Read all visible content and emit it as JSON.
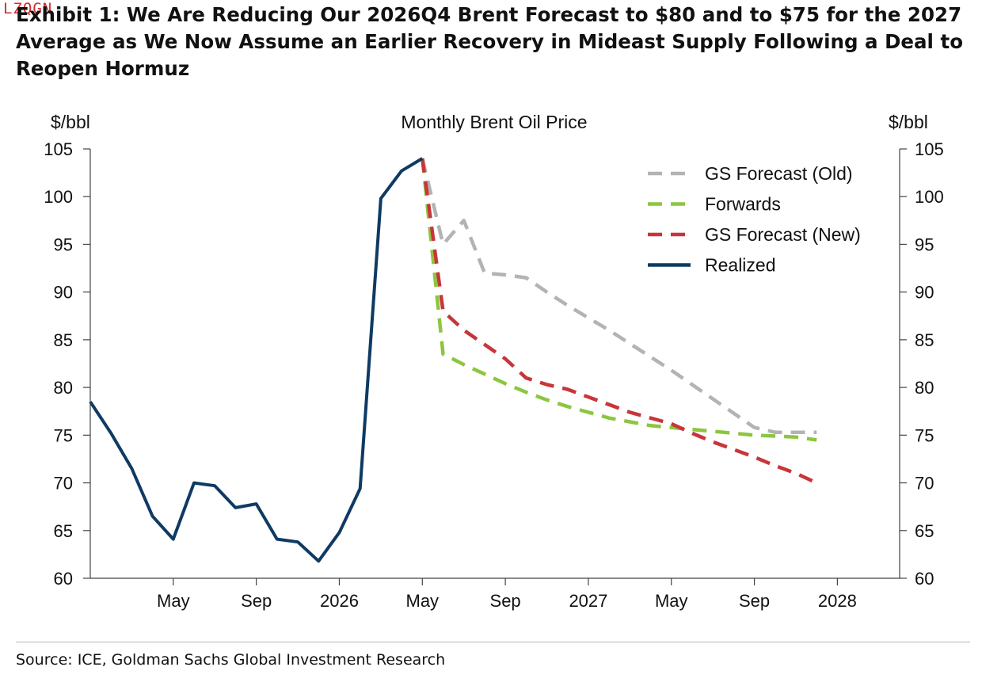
{
  "watermark": "LZQGN",
  "title": "Exhibit 1: We Are Reducing Our 2026Q4 Brent Forecast to $80 and to $75 for the 2027 Average as We Now Assume an Earlier Recovery in Mideast Supply Following a Deal to Reopen Hormuz",
  "source": "Source: ICE, Goldman Sachs Global Investment Research",
  "chart_data": {
    "type": "line",
    "title": "Monthly Brent Oil Price",
    "ylabel_left": "$/bbl",
    "ylabel_right": "$/bbl",
    "ylim": [
      60,
      105
    ],
    "yticks": [
      60,
      65,
      70,
      75,
      80,
      85,
      90,
      95,
      100,
      105
    ],
    "x_range": [
      "2025-01",
      "2028-04"
    ],
    "xticks": [
      {
        "x": "2025-05",
        "label": "May"
      },
      {
        "x": "2025-09",
        "label": "Sep"
      },
      {
        "x": "2026-01",
        "label": "2026"
      },
      {
        "x": "2026-05",
        "label": "May"
      },
      {
        "x": "2026-09",
        "label": "Sep"
      },
      {
        "x": "2027-01",
        "label": "2027"
      },
      {
        "x": "2027-05",
        "label": "May"
      },
      {
        "x": "2027-09",
        "label": "Sep"
      },
      {
        "x": "2028-01",
        "label": "2028"
      }
    ],
    "legend_position": "top-right",
    "grid": false,
    "series": [
      {
        "name": "GS Forecast (Old)",
        "color": "#b3b3b3",
        "dash": "dashed",
        "x": [
          "2026-05",
          "2026-06",
          "2026-07",
          "2026-08",
          "2026-09",
          "2026-10",
          "2026-11",
          "2026-12",
          "2027-01",
          "2027-02",
          "2027-03",
          "2027-04",
          "2027-05",
          "2027-06",
          "2027-07",
          "2027-08",
          "2027-09",
          "2027-10",
          "2027-11",
          "2027-12"
        ],
        "y": [
          104,
          95,
          97.5,
          92,
          91.8,
          91.5,
          90,
          88.6,
          87.3,
          86,
          84.6,
          83.2,
          81.8,
          80.3,
          78.8,
          77.3,
          75.8,
          75.3,
          75.3,
          75.3
        ]
      },
      {
        "name": "Forwards",
        "color": "#8cc63f",
        "dash": "dashed",
        "x": [
          "2026-05",
          "2026-06",
          "2026-07",
          "2026-08",
          "2026-09",
          "2026-10",
          "2026-11",
          "2026-12",
          "2027-01",
          "2027-02",
          "2027-03",
          "2027-04",
          "2027-05",
          "2027-06",
          "2027-07",
          "2027-08",
          "2027-09",
          "2027-10",
          "2027-11",
          "2027-12"
        ],
        "y": [
          104,
          83.5,
          82.4,
          81.4,
          80.4,
          79.5,
          78.7,
          78.0,
          77.4,
          76.8,
          76.4,
          76.0,
          75.8,
          75.6,
          75.4,
          75.2,
          75.0,
          74.9,
          74.8,
          74.5
        ]
      },
      {
        "name": "GS Forecast (New)",
        "color": "#c8353a",
        "dash": "dashed",
        "x": [
          "2026-05",
          "2026-06",
          "2026-07",
          "2026-08",
          "2026-09",
          "2026-10",
          "2026-11",
          "2026-12",
          "2027-01",
          "2027-02",
          "2027-03",
          "2027-04",
          "2027-05",
          "2027-06",
          "2027-07",
          "2027-08",
          "2027-09",
          "2027-10",
          "2027-11",
          "2027-12"
        ],
        "y": [
          104,
          88,
          86,
          84.5,
          83,
          81,
          80.3,
          79.8,
          79,
          78.2,
          77.4,
          76.8,
          76.2,
          75.2,
          74.3,
          73.5,
          72.7,
          71.8,
          71.0,
          70.0
        ]
      },
      {
        "name": "Realized",
        "color": "#0f3a63",
        "dash": "solid",
        "x": [
          "2025-01",
          "2025-02",
          "2025-03",
          "2025-04",
          "2025-05",
          "2025-06",
          "2025-07",
          "2025-08",
          "2025-09",
          "2025-10",
          "2025-11",
          "2025-12",
          "2026-01",
          "2026-02",
          "2026-03",
          "2026-04",
          "2026-05"
        ],
        "y": [
          78.5,
          75.2,
          71.5,
          66.5,
          64.1,
          70,
          69.7,
          67.4,
          67.8,
          64.1,
          63.8,
          61.8,
          64.8,
          69.4,
          99.8,
          102.7,
          104
        ]
      }
    ]
  }
}
